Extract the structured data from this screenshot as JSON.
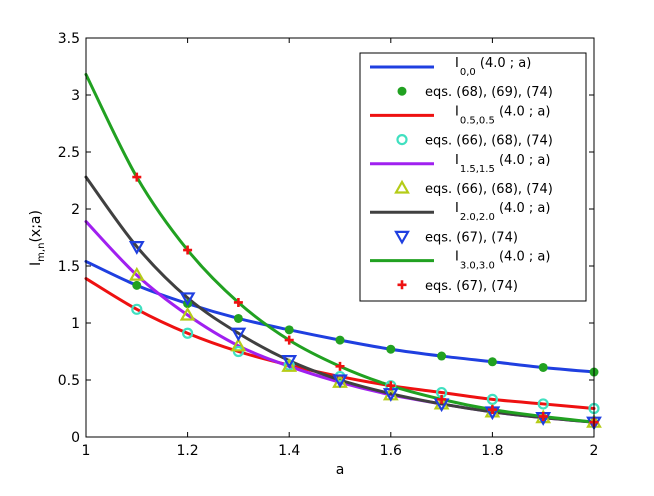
{
  "chart_data": {
    "type": "line",
    "xlabel": "a",
    "ylabel": {
      "base": "I",
      "sub": "m,n",
      "suffix": "(x;a)"
    },
    "xlim": [
      1,
      2
    ],
    "ylim": [
      0,
      3.5
    ],
    "xticks": [
      1,
      1.2,
      1.4,
      1.6,
      1.8,
      2
    ],
    "xtick_labels": [
      "1",
      "1.2",
      "1.4",
      "1.6",
      "1.8",
      "2"
    ],
    "yticks": [
      0,
      0.5,
      1,
      1.5,
      2,
      2.5,
      3,
      3.5
    ],
    "ytick_labels": [
      "0",
      "0.5",
      "1",
      "1.5",
      "2",
      "2.5",
      "3",
      "3.5"
    ],
    "grid": false,
    "legend_position": "top-right",
    "curves": [
      {
        "name": "I_0,0 (4.0 ; a)",
        "color": "#1f3fe0",
        "x": [
          1,
          1.1,
          1.2,
          1.3,
          1.4,
          1.5,
          1.6,
          1.7,
          1.8,
          1.9,
          2
        ],
        "y": [
          1.54,
          1.33,
          1.17,
          1.04,
          0.94,
          0.85,
          0.77,
          0.71,
          0.66,
          0.61,
          0.57
        ]
      },
      {
        "name": "I_0.5,0.5 (4.0 ; a)",
        "color": "#ee1111",
        "x": [
          1,
          1.1,
          1.2,
          1.3,
          1.4,
          1.5,
          1.6,
          1.7,
          1.8,
          1.9,
          2
        ],
        "y": [
          1.39,
          1.12,
          0.91,
          0.75,
          0.63,
          0.53,
          0.45,
          0.39,
          0.33,
          0.29,
          0.25
        ]
      },
      {
        "name": "I_1.5,1.5 (4.0 ; a)",
        "color": "#a020f0",
        "x": [
          1,
          1.1,
          1.2,
          1.3,
          1.4,
          1.5,
          1.6,
          1.7,
          1.8,
          1.9,
          2
        ],
        "y": [
          1.89,
          1.42,
          1.07,
          0.8,
          0.62,
          0.48,
          0.37,
          0.29,
          0.22,
          0.17,
          0.13
        ]
      },
      {
        "name": "I_2.0,2.0 (4.0 ; a)",
        "color": "#404040",
        "x": [
          1,
          1.1,
          1.2,
          1.3,
          1.4,
          1.5,
          1.6,
          1.7,
          1.8,
          1.9,
          2
        ],
        "y": [
          2.28,
          1.67,
          1.22,
          0.91,
          0.67,
          0.5,
          0.38,
          0.29,
          0.22,
          0.17,
          0.13
        ]
      },
      {
        "name": "I_3.0,3.0 (4.0 ; a)",
        "color": "#21a121",
        "x": [
          1,
          1.1,
          1.2,
          1.3,
          1.4,
          1.5,
          1.6,
          1.7,
          1.8,
          1.9,
          2
        ],
        "y": [
          3.18,
          2.28,
          1.64,
          1.18,
          0.85,
          0.62,
          0.45,
          0.33,
          0.24,
          0.18,
          0.13
        ]
      }
    ],
    "markers": [
      {
        "name": "eqs. (68), (69), (74)",
        "symbol": "dot",
        "color": "#21a121",
        "x": [
          1.1,
          1.2,
          1.3,
          1.4,
          1.5,
          1.6,
          1.7,
          1.8,
          1.9,
          2
        ],
        "y": [
          1.33,
          1.17,
          1.04,
          0.94,
          0.85,
          0.77,
          0.71,
          0.66,
          0.61,
          0.57
        ]
      },
      {
        "name": "eqs. (66), (68), (74)",
        "symbol": "circle",
        "color": "#40e0c0",
        "x": [
          1.1,
          1.2,
          1.3,
          1.4,
          1.5,
          1.6,
          1.7,
          1.8,
          1.9,
          2
        ],
        "y": [
          1.12,
          0.91,
          0.75,
          0.63,
          0.53,
          0.45,
          0.39,
          0.33,
          0.29,
          0.25
        ]
      },
      {
        "name": "eqs. (66), (68), (74)",
        "symbol": "triangle-up",
        "color": "#b5cc18",
        "x": [
          1.1,
          1.2,
          1.3,
          1.4,
          1.5,
          1.6,
          1.7,
          1.8,
          1.9,
          2
        ],
        "y": [
          1.42,
          1.07,
          0.8,
          0.62,
          0.48,
          0.37,
          0.29,
          0.22,
          0.17,
          0.13
        ]
      },
      {
        "name": "eqs. (67), (74)",
        "symbol": "triangle-down",
        "color": "#1f3fe0",
        "x": [
          1.1,
          1.2,
          1.3,
          1.4,
          1.5,
          1.6,
          1.7,
          1.8,
          1.9,
          2
        ],
        "y": [
          1.67,
          1.22,
          0.91,
          0.67,
          0.5,
          0.38,
          0.29,
          0.22,
          0.17,
          0.13
        ]
      },
      {
        "name": "eqs. (67), (74)",
        "symbol": "plus",
        "color": "#ee1111",
        "x": [
          1.1,
          1.2,
          1.3,
          1.4,
          1.5,
          1.6,
          1.7,
          1.8,
          1.9,
          2
        ],
        "y": [
          2.28,
          1.64,
          1.18,
          0.85,
          0.62,
          0.45,
          0.33,
          0.24,
          0.18,
          0.13
        ]
      }
    ],
    "legend": [
      {
        "kind": "line",
        "color": "#1f3fe0",
        "base": "I",
        "sub": "0,0",
        "suffix": " (4.0 ; a)"
      },
      {
        "kind": "dot",
        "color": "#21a121",
        "text": "eqs. (68), (69), (74)"
      },
      {
        "kind": "line",
        "color": "#ee1111",
        "base": "I",
        "sub": "0.5,0.5",
        "suffix": " (4.0 ; a)"
      },
      {
        "kind": "circle",
        "color": "#40e0c0",
        "text": "eqs. (66), (68), (74)"
      },
      {
        "kind": "line",
        "color": "#a020f0",
        "base": "I",
        "sub": "1.5,1.5",
        "suffix": " (4.0 ; a)"
      },
      {
        "kind": "triangle-up",
        "color": "#b5cc18",
        "text": "eqs. (66), (68), (74)"
      },
      {
        "kind": "line",
        "color": "#404040",
        "base": "I",
        "sub": "2.0,2.0",
        "suffix": " (4.0 ; a)"
      },
      {
        "kind": "triangle-down",
        "color": "#1f3fe0",
        "text": "eqs. (67), (74)"
      },
      {
        "kind": "line",
        "color": "#21a121",
        "base": "I",
        "sub": "3.0,3.0",
        "suffix": " (4.0 ; a)"
      },
      {
        "kind": "plus",
        "color": "#ee1111",
        "text": "eqs. (67), (74)"
      }
    ]
  }
}
